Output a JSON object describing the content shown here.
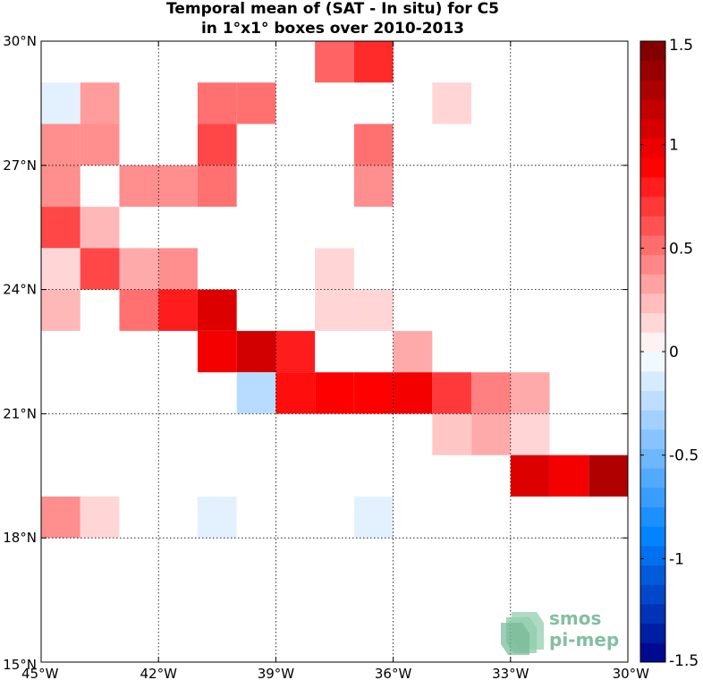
{
  "chart_data": {
    "type": "heatmap",
    "title_lines": [
      "Temporal mean of (SAT - In situ) for C5",
      "in 1°x1° boxes over 2010-2013"
    ],
    "x_ticks": [
      {
        "value": -45,
        "label": "45°W"
      },
      {
        "value": -42,
        "label": "42°W"
      },
      {
        "value": -39,
        "label": "39°W"
      },
      {
        "value": -36,
        "label": "36°W"
      },
      {
        "value": -33,
        "label": "33°W"
      },
      {
        "value": -30,
        "label": "30°W"
      }
    ],
    "y_ticks": [
      {
        "value": 15,
        "label": "15°N"
      },
      {
        "value": 18,
        "label": "18°N"
      },
      {
        "value": 21,
        "label": "21°N"
      },
      {
        "value": 24,
        "label": "24°N"
      },
      {
        "value": 27,
        "label": "27°N"
      },
      {
        "value": 30,
        "label": "30°N"
      }
    ],
    "xlim": [
      -45,
      -30
    ],
    "ylim": [
      15,
      30
    ],
    "grid": true,
    "colorbar": {
      "range": [
        -1.5,
        1.5
      ],
      "ticks": [
        {
          "value": 1.5,
          "label": "1.5"
        },
        {
          "value": 1,
          "label": "1"
        },
        {
          "value": 0.5,
          "label": "0.5"
        },
        {
          "value": 0,
          "label": "0"
        },
        {
          "value": -0.5,
          "label": "-0.5"
        },
        {
          "value": -1,
          "label": "-1"
        },
        {
          "value": -1.5,
          "label": "-1.5"
        }
      ],
      "levels": 32,
      "colormap": "blue-white-red"
    },
    "cells": [
      {
        "lon": -38,
        "lat": 29,
        "value": 0.55
      },
      {
        "lon": -37,
        "lat": 29,
        "value": 0.75
      },
      {
        "lon": -45,
        "lat": 28,
        "value": -0.1
      },
      {
        "lon": -44,
        "lat": 28,
        "value": 0.35
      },
      {
        "lon": -41,
        "lat": 28,
        "value": 0.5
      },
      {
        "lon": -40,
        "lat": 28,
        "value": 0.5
      },
      {
        "lon": -35,
        "lat": 28,
        "value": 0.15
      },
      {
        "lon": -45,
        "lat": 27,
        "value": 0.4
      },
      {
        "lon": -44,
        "lat": 27,
        "value": 0.4
      },
      {
        "lon": -41,
        "lat": 27,
        "value": 0.65
      },
      {
        "lon": -37,
        "lat": 27,
        "value": 0.5
      },
      {
        "lon": -45,
        "lat": 26,
        "value": 0.4
      },
      {
        "lon": -43,
        "lat": 26,
        "value": 0.4
      },
      {
        "lon": -42,
        "lat": 26,
        "value": 0.4
      },
      {
        "lon": -41,
        "lat": 26,
        "value": 0.5
      },
      {
        "lon": -37,
        "lat": 26,
        "value": 0.4
      },
      {
        "lon": -45,
        "lat": 25,
        "value": 0.65
      },
      {
        "lon": -44,
        "lat": 25,
        "value": 0.25
      },
      {
        "lon": -45,
        "lat": 24,
        "value": 0.15
      },
      {
        "lon": -44,
        "lat": 24,
        "value": 0.65
      },
      {
        "lon": -43,
        "lat": 24,
        "value": 0.3
      },
      {
        "lon": -42,
        "lat": 24,
        "value": 0.4
      },
      {
        "lon": -38,
        "lat": 24,
        "value": 0.15
      },
      {
        "lon": -45,
        "lat": 23,
        "value": 0.25
      },
      {
        "lon": -43,
        "lat": 23,
        "value": 0.5
      },
      {
        "lon": -42,
        "lat": 23,
        "value": 0.8
      },
      {
        "lon": -41,
        "lat": 23,
        "value": 1.05
      },
      {
        "lon": -38,
        "lat": 23,
        "value": 0.15
      },
      {
        "lon": -37,
        "lat": 23,
        "value": 0.15
      },
      {
        "lon": -41,
        "lat": 22,
        "value": 0.95
      },
      {
        "lon": -40,
        "lat": 22,
        "value": 1.1
      },
      {
        "lon": -39,
        "lat": 22,
        "value": 0.8
      },
      {
        "lon": -36,
        "lat": 22,
        "value": 0.3
      },
      {
        "lon": -40,
        "lat": 21,
        "value": -0.25
      },
      {
        "lon": -39,
        "lat": 21,
        "value": 0.85
      },
      {
        "lon": -38,
        "lat": 21,
        "value": 0.9
      },
      {
        "lon": -37,
        "lat": 21,
        "value": 0.9
      },
      {
        "lon": -36,
        "lat": 21,
        "value": 0.95
      },
      {
        "lon": -35,
        "lat": 21,
        "value": 0.7
      },
      {
        "lon": -34,
        "lat": 21,
        "value": 0.45
      },
      {
        "lon": -33,
        "lat": 21,
        "value": 0.3
      },
      {
        "lon": -35,
        "lat": 20,
        "value": 0.2
      },
      {
        "lon": -34,
        "lat": 20,
        "value": 0.3
      },
      {
        "lon": -33,
        "lat": 20,
        "value": 0.15
      },
      {
        "lon": -33,
        "lat": 19,
        "value": 1.05
      },
      {
        "lon": -32,
        "lat": 19,
        "value": 0.95
      },
      {
        "lon": -31,
        "lat": 19,
        "value": 1.25
      },
      {
        "lon": -45,
        "lat": 18,
        "value": 0.4
      },
      {
        "lon": -44,
        "lat": 18,
        "value": 0.15
      },
      {
        "lon": -41,
        "lat": 18,
        "value": -0.1
      },
      {
        "lon": -37,
        "lat": 18,
        "value": -0.1
      }
    ]
  },
  "logo": {
    "line1": "smos",
    "line2": "pi-mep"
  }
}
